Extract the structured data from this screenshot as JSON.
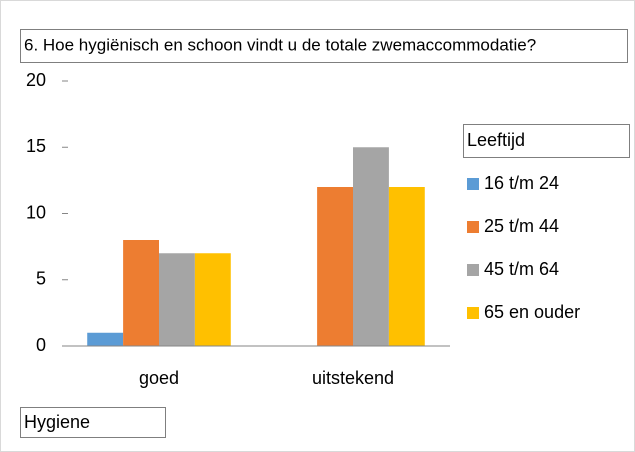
{
  "chart_data": {
    "type": "bar",
    "title": "6. Hoe hygiënisch en schoon vindt u de totale zwemaccommodatie?",
    "x_label": "Hygiene",
    "legend_title": "Leeftijd",
    "legend_position": "right",
    "grid": false,
    "categories": [
      "goed",
      "uitstekend"
    ],
    "series": [
      {
        "name": "16 t/m 24",
        "color": "#5b9bd5",
        "values": [
          1,
          0
        ]
      },
      {
        "name": "25 t/m 44",
        "color": "#ed7d31",
        "values": [
          8,
          12
        ]
      },
      {
        "name": "45 t/m 64",
        "color": "#a5a5a5",
        "values": [
          7,
          15
        ]
      },
      {
        "name": "65 en ouder",
        "color": "#ffc000",
        "values": [
          7,
          12
        ]
      }
    ],
    "ylim": [
      0,
      20
    ],
    "yticks": [
      0,
      5,
      10,
      15,
      20
    ]
  }
}
